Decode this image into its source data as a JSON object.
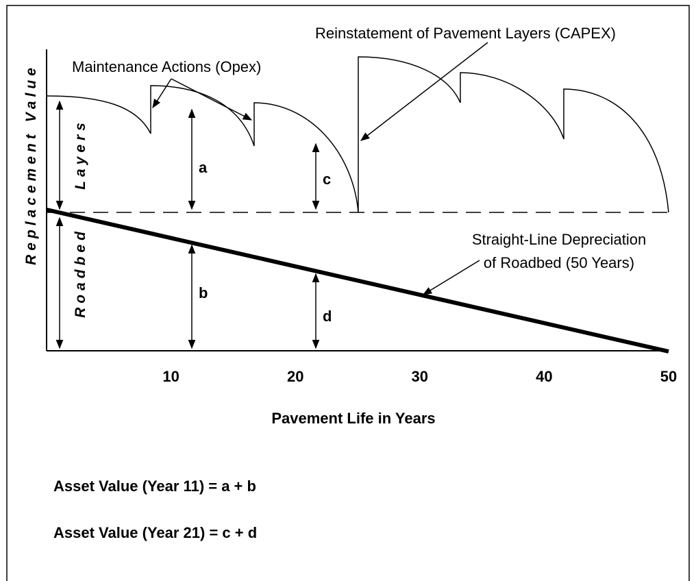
{
  "axis": {
    "y_label": "Replacement Value",
    "x_label": "Pavement Life in Years",
    "x_ticks": [
      10,
      20,
      30,
      40,
      50
    ]
  },
  "regions": {
    "layers": "Layers",
    "roadbed": "Roadbed"
  },
  "annotations": {
    "maintenance": "Maintenance Actions (Opex)",
    "reinstatement": "Reinstatement of Pavement Layers (CAPEX)",
    "depreciation": [
      "Straight-Line Depreciation",
      "of Roadbed (50 Years)"
    ]
  },
  "dimensions": [
    "a",
    "b",
    "c",
    "d"
  ],
  "formulas": [
    "Asset Value (Year 11) = a + b",
    "Asset Value (Year 21) = c + d"
  ]
}
